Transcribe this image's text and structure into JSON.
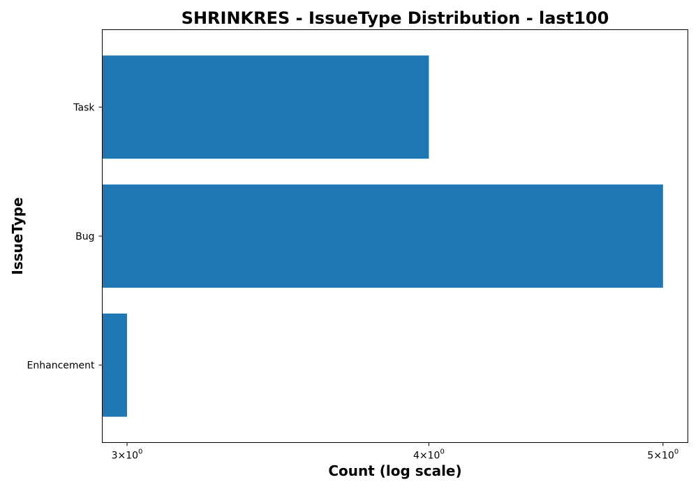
{
  "chart_data": {
    "type": "bar",
    "orientation": "horizontal",
    "title": "SHRINKRES - IssueType Distribution - last100",
    "xlabel": "Count (log scale)",
    "ylabel": "IssueType",
    "x_scale": "log",
    "xlim": [
      2.93,
      5.12
    ],
    "categories": [
      "Task",
      "Bug",
      "Enhancement"
    ],
    "values": [
      4,
      5,
      3
    ],
    "bar_color": "#1f77b4",
    "x_ticks": [
      {
        "value": 3,
        "mantissa": "3",
        "base": "10",
        "exponent": "0"
      },
      {
        "value": 4,
        "mantissa": "4",
        "base": "10",
        "exponent": "0"
      },
      {
        "value": 5,
        "mantissa": "5",
        "base": "10",
        "exponent": "0"
      }
    ],
    "grid": false,
    "legend": "none"
  }
}
